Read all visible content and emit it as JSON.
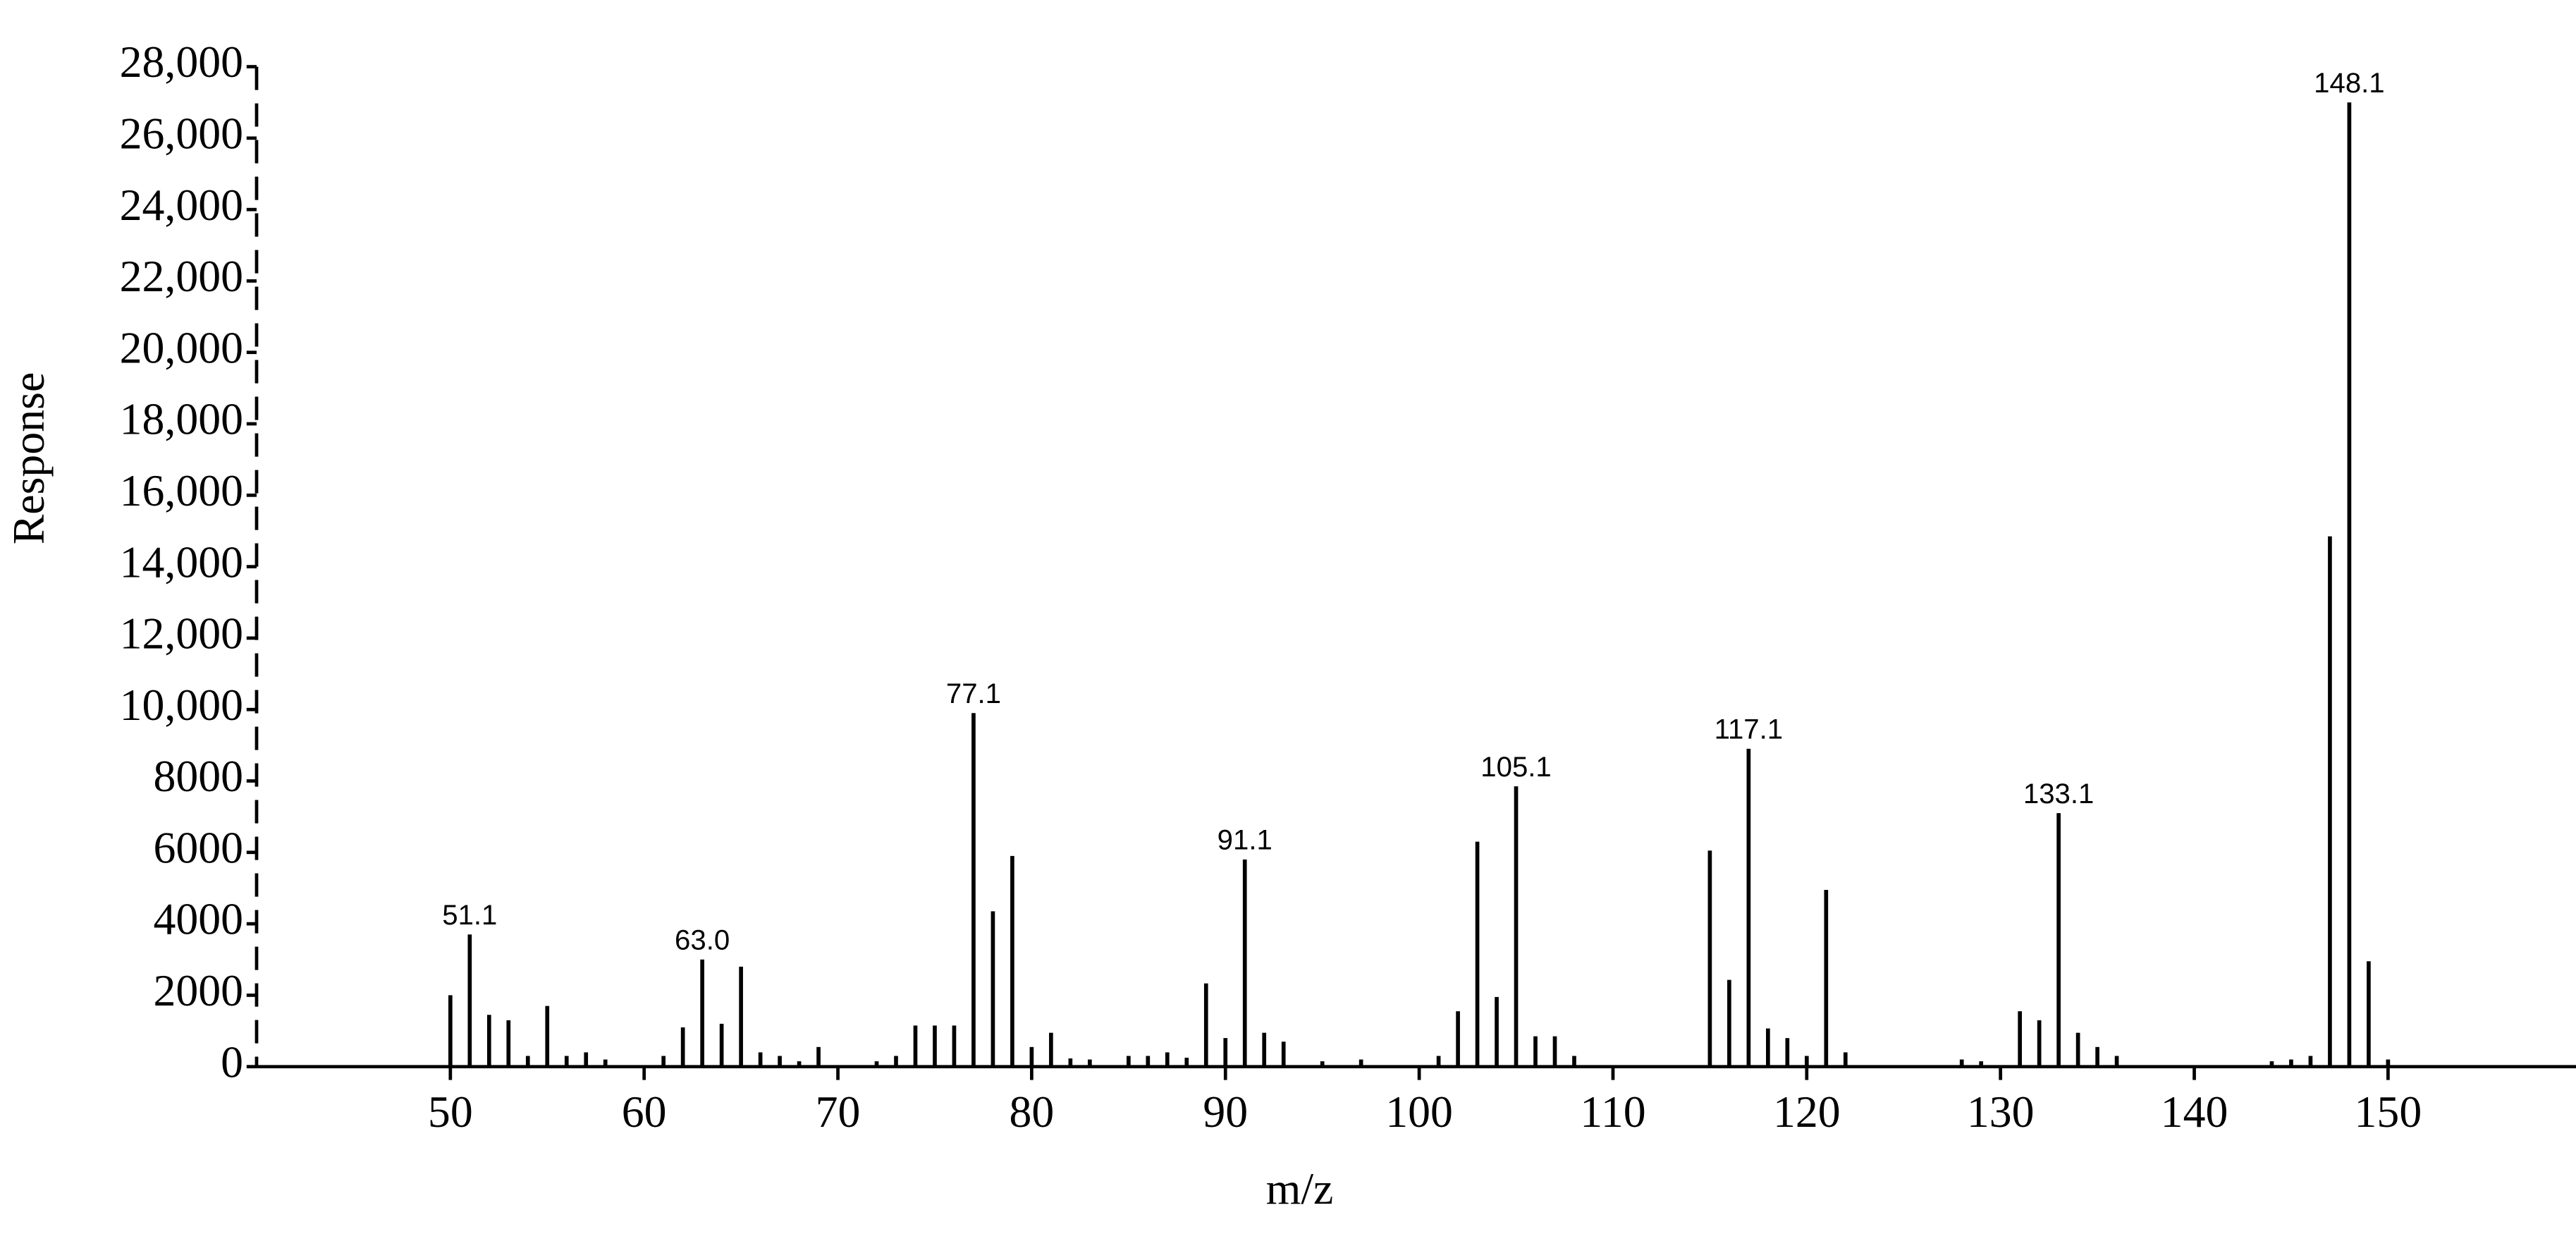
{
  "chart_data": {
    "type": "stem",
    "x_label": "m/z",
    "y_label": "Response",
    "x": [
      50,
      51,
      52,
      53,
      54,
      55,
      56,
      57,
      58,
      61,
      62,
      63,
      64,
      65,
      66,
      67,
      68,
      69,
      72,
      73,
      74,
      75,
      76,
      77,
      78,
      79,
      80,
      81,
      82,
      83,
      85,
      86,
      87,
      88,
      89,
      90,
      91,
      92,
      93,
      95,
      97,
      101,
      102,
      103,
      104,
      105,
      106,
      107,
      108,
      115,
      116,
      117,
      118,
      119,
      120,
      121,
      122,
      128,
      129,
      131,
      132,
      133,
      134,
      135,
      136,
      144,
      145,
      146,
      147,
      148,
      149,
      150
    ],
    "values": [
      2000,
      3700,
      1450,
      1300,
      300,
      1700,
      300,
      400,
      200,
      300,
      1100,
      3000,
      1200,
      2800,
      400,
      300,
      150,
      550,
      150,
      300,
      1150,
      1150,
      1150,
      9900,
      4350,
      5900,
      550,
      950,
      230,
      200,
      300,
      300,
      400,
      250,
      2330,
      800,
      5800,
      950,
      700,
      150,
      200,
      300,
      1550,
      6300,
      1950,
      7850,
      850,
      850,
      300,
      6050,
      2430,
      8900,
      1070,
      800,
      300,
      4950,
      400,
      200,
      150,
      1550,
      1300,
      7100,
      950,
      550,
      300,
      150,
      200,
      300,
      14850,
      27000,
      2950,
      200
    ],
    "color": "#000000",
    "annotations": [
      {
        "text": "51.1",
        "x": 51,
        "y": 3700
      },
      {
        "text": "63.0",
        "x": 63,
        "y": 3000
      },
      {
        "text": "77.1",
        "x": 77,
        "y": 9900
      },
      {
        "text": "91.1",
        "x": 91,
        "y": 5800
      },
      {
        "text": "105.1",
        "x": 105,
        "y": 7850
      },
      {
        "text": "117.1",
        "x": 117,
        "y": 8900
      },
      {
        "text": "133.1",
        "x": 133,
        "y": 7100
      },
      {
        "text": "148.1",
        "x": 148,
        "y": 27000
      }
    ],
    "xlim": [
      40,
      159.7
    ],
    "xticks": [
      50,
      60,
      70,
      80,
      90,
      100,
      110,
      120,
      130,
      140,
      150
    ],
    "ylim": [
      0,
      28000
    ],
    "yticks": [
      0,
      2000,
      4000,
      6000,
      8000,
      {
        "value": 10000,
        "label": "10,000"
      },
      {
        "value": 12000,
        "label": "12,000"
      },
      {
        "value": 14000,
        "label": "14,000"
      },
      {
        "value": 16000,
        "label": "16,000"
      },
      {
        "value": 18000,
        "label": "18,000"
      },
      {
        "value": 20000,
        "label": "20,000"
      },
      {
        "value": 22000,
        "label": "22,000"
      },
      {
        "value": 24000,
        "label": "24,000"
      },
      {
        "value": 26000,
        "label": "26,000"
      },
      {
        "value": 28000,
        "label": "28,000"
      }
    ]
  }
}
